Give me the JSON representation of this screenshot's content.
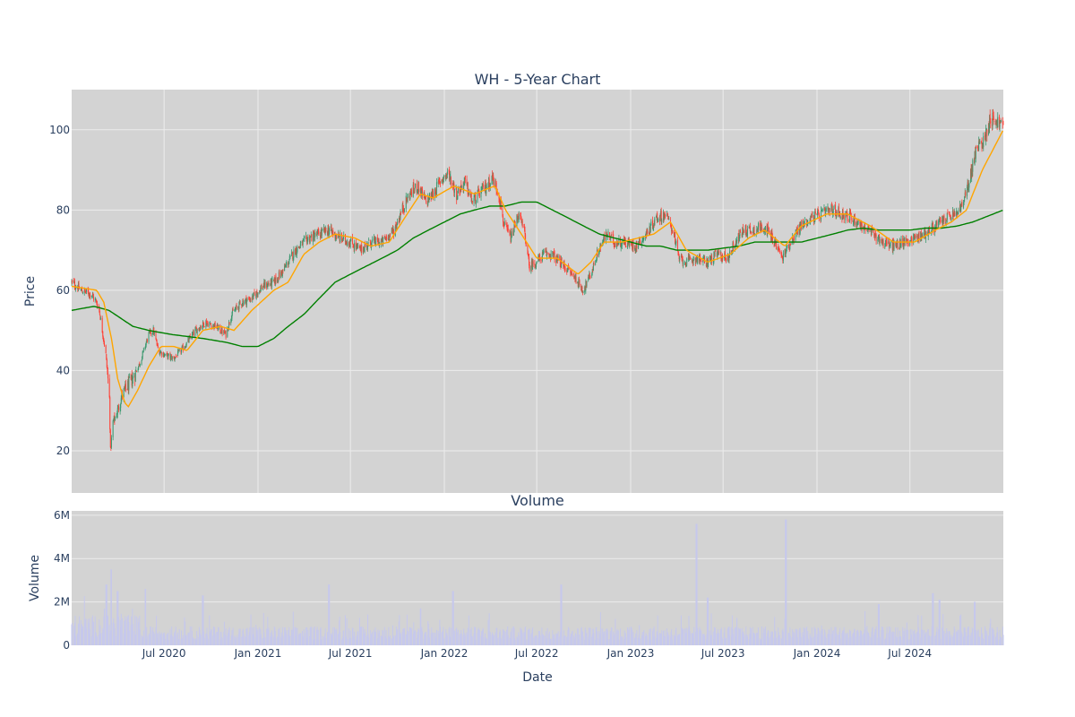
{
  "chart_data": {
    "type": "candlestick",
    "colors": {
      "plot_bg": "#d3d3d3",
      "grid": "#ececec",
      "up": "#3d9970",
      "down": "#ff4136",
      "ma_short": "#ffa500",
      "ma_long": "#008000",
      "volume": "#c6c8ec",
      "text": "#2a3f5f"
    },
    "price": {
      "title": "WH - 5-Year Chart",
      "ylabel": "Price",
      "ylim": [
        9.5,
        110
      ],
      "yticks": [
        20,
        40,
        60,
        80,
        100
      ],
      "x_range": [
        "2020-01-02",
        "2024-12-31"
      ],
      "close_keypoints": [
        [
          "2020-01-02",
          62
        ],
        [
          "2020-01-20",
          60
        ],
        [
          "2020-02-10",
          59
        ],
        [
          "2020-02-24",
          56
        ],
        [
          "2020-03-02",
          50
        ],
        [
          "2020-03-09",
          44
        ],
        [
          "2020-03-16",
          33
        ],
        [
          "2020-03-18",
          20
        ],
        [
          "2020-03-23",
          27
        ],
        [
          "2020-04-01",
          30
        ],
        [
          "2020-04-10",
          34
        ],
        [
          "2020-04-20",
          36
        ],
        [
          "2020-05-01",
          38
        ],
        [
          "2020-05-15",
          42
        ],
        [
          "2020-06-01",
          49
        ],
        [
          "2020-06-10",
          50
        ],
        [
          "2020-06-20",
          45
        ],
        [
          "2020-07-01",
          44
        ],
        [
          "2020-07-20",
          43
        ],
        [
          "2020-08-10",
          46
        ],
        [
          "2020-09-01",
          50
        ],
        [
          "2020-09-20",
          52
        ],
        [
          "2020-10-10",
          51
        ],
        [
          "2020-10-30",
          49
        ],
        [
          "2020-11-10",
          54
        ],
        [
          "2020-11-30",
          57
        ],
        [
          "2020-12-20",
          58
        ],
        [
          "2021-01-10",
          61
        ],
        [
          "2021-02-01",
          62
        ],
        [
          "2021-02-20",
          65
        ],
        [
          "2021-03-15",
          70
        ],
        [
          "2021-04-10",
          73
        ],
        [
          "2021-05-01",
          74
        ],
        [
          "2021-05-20",
          75
        ],
        [
          "2021-06-10",
          73
        ],
        [
          "2021-07-01",
          72
        ],
        [
          "2021-07-20",
          70
        ],
        [
          "2021-08-10",
          72
        ],
        [
          "2021-09-01",
          72
        ],
        [
          "2021-09-25",
          75
        ],
        [
          "2021-10-10",
          80
        ],
        [
          "2021-10-25",
          84
        ],
        [
          "2021-11-10",
          86
        ],
        [
          "2021-11-26",
          82
        ],
        [
          "2021-12-10",
          84
        ],
        [
          "2021-12-28",
          88
        ],
        [
          "2022-01-10",
          89
        ],
        [
          "2022-01-25",
          84
        ],
        [
          "2022-02-10",
          87
        ],
        [
          "2022-02-25",
          82
        ],
        [
          "2022-03-10",
          84
        ],
        [
          "2022-03-25",
          86
        ],
        [
          "2022-04-05",
          88
        ],
        [
          "2022-04-18",
          84
        ],
        [
          "2022-04-28",
          76
        ],
        [
          "2022-05-12",
          73
        ],
        [
          "2022-05-26",
          79
        ],
        [
          "2022-06-08",
          74
        ],
        [
          "2022-06-16",
          66
        ],
        [
          "2022-06-30",
          67
        ],
        [
          "2022-07-15",
          69
        ],
        [
          "2022-07-30",
          69
        ],
        [
          "2022-08-15",
          67
        ],
        [
          "2022-09-01",
          65
        ],
        [
          "2022-09-15",
          63
        ],
        [
          "2022-09-30",
          60
        ],
        [
          "2022-10-15",
          64
        ],
        [
          "2022-10-30",
          70
        ],
        [
          "2022-11-15",
          74
        ],
        [
          "2022-11-30",
          72
        ],
        [
          "2022-12-20",
          72
        ],
        [
          "2023-01-10",
          71
        ],
        [
          "2023-02-01",
          74
        ],
        [
          "2023-02-20",
          78
        ],
        [
          "2023-03-10",
          79
        ],
        [
          "2023-03-25",
          75
        ],
        [
          "2023-04-05",
          68
        ],
        [
          "2023-04-20",
          67
        ],
        [
          "2023-05-10",
          68
        ],
        [
          "2023-05-30",
          67
        ],
        [
          "2023-06-20",
          69
        ],
        [
          "2023-07-10",
          68
        ],
        [
          "2023-07-25",
          72
        ],
        [
          "2023-08-10",
          75
        ],
        [
          "2023-08-30",
          75
        ],
        [
          "2023-09-20",
          76
        ],
        [
          "2023-10-10",
          72
        ],
        [
          "2023-10-25",
          68
        ],
        [
          "2023-11-10",
          72
        ],
        [
          "2023-11-30",
          76
        ],
        [
          "2023-12-20",
          78
        ],
        [
          "2024-01-10",
          79
        ],
        [
          "2024-01-30",
          80
        ],
        [
          "2024-02-20",
          79
        ],
        [
          "2024-03-10",
          78
        ],
        [
          "2024-03-30",
          76
        ],
        [
          "2024-04-20",
          74
        ],
        [
          "2024-05-10",
          72
        ],
        [
          "2024-05-30",
          71
        ],
        [
          "2024-06-20",
          72
        ],
        [
          "2024-07-10",
          73
        ],
        [
          "2024-07-30",
          74
        ],
        [
          "2024-08-20",
          76
        ],
        [
          "2024-09-10",
          78
        ],
        [
          "2024-09-30",
          79
        ],
        [
          "2024-10-15",
          82
        ],
        [
          "2024-10-28",
          89
        ],
        [
          "2024-11-08",
          95
        ],
        [
          "2024-11-25",
          98
        ],
        [
          "2024-12-05",
          103
        ],
        [
          "2024-12-20",
          102
        ],
        [
          "2024-12-31",
          101
        ]
      ],
      "ma_short_keypoints": [
        [
          "2020-01-02",
          61
        ],
        [
          "2020-02-20",
          60
        ],
        [
          "2020-03-05",
          57
        ],
        [
          "2020-03-20",
          48
        ],
        [
          "2020-04-01",
          38
        ],
        [
          "2020-04-15",
          32
        ],
        [
          "2020-04-22",
          31
        ],
        [
          "2020-05-10",
          35
        ],
        [
          "2020-06-01",
          41
        ],
        [
          "2020-06-25",
          46
        ],
        [
          "2020-07-20",
          46
        ],
        [
          "2020-08-15",
          45
        ],
        [
          "2020-09-15",
          50
        ],
        [
          "2020-10-20",
          51
        ],
        [
          "2020-11-15",
          50
        ],
        [
          "2020-12-20",
          55
        ],
        [
          "2021-02-01",
          60
        ],
        [
          "2021-03-01",
          62
        ],
        [
          "2021-04-01",
          69
        ],
        [
          "2021-05-01",
          72
        ],
        [
          "2021-06-01",
          74
        ],
        [
          "2021-07-10",
          73
        ],
        [
          "2021-08-10",
          71
        ],
        [
          "2021-09-15",
          72
        ],
        [
          "2021-10-15",
          78
        ],
        [
          "2021-11-15",
          84
        ],
        [
          "2021-12-10",
          83
        ],
        [
          "2022-01-20",
          86
        ],
        [
          "2022-03-01",
          84
        ],
        [
          "2022-04-10",
          86
        ],
        [
          "2022-05-01",
          80
        ],
        [
          "2022-06-01",
          74
        ],
        [
          "2022-07-01",
          68
        ],
        [
          "2022-08-10",
          68
        ],
        [
          "2022-09-20",
          64
        ],
        [
          "2022-10-15",
          67
        ],
        [
          "2022-11-10",
          72
        ],
        [
          "2022-12-15",
          72
        ],
        [
          "2023-02-15",
          74
        ],
        [
          "2023-03-20",
          77
        ],
        [
          "2023-04-20",
          70
        ],
        [
          "2023-06-01",
          67
        ],
        [
          "2023-07-15",
          69
        ],
        [
          "2023-08-20",
          73
        ],
        [
          "2023-09-20",
          75
        ],
        [
          "2023-10-30",
          71
        ],
        [
          "2023-12-01",
          76
        ],
        [
          "2024-01-20",
          79
        ],
        [
          "2024-03-01",
          79
        ],
        [
          "2024-04-15",
          76
        ],
        [
          "2024-05-30",
          72
        ],
        [
          "2024-07-10",
          72
        ],
        [
          "2024-08-20",
          75
        ],
        [
          "2024-09-20",
          77
        ],
        [
          "2024-10-20",
          80
        ],
        [
          "2024-11-20",
          90
        ],
        [
          "2024-12-31",
          100
        ]
      ],
      "ma_long_keypoints": [
        [
          "2020-01-02",
          55
        ],
        [
          "2020-02-15",
          56
        ],
        [
          "2020-03-15",
          55
        ],
        [
          "2020-05-01",
          51
        ],
        [
          "2020-06-01",
          50
        ],
        [
          "2020-07-15",
          49
        ],
        [
          "2020-09-15",
          48
        ],
        [
          "2020-11-01",
          47
        ],
        [
          "2020-12-01",
          46
        ],
        [
          "2021-01-01",
          46
        ],
        [
          "2021-02-01",
          48
        ],
        [
          "2021-03-01",
          51
        ],
        [
          "2021-04-01",
          54
        ],
        [
          "2021-05-01",
          58
        ],
        [
          "2021-06-01",
          62
        ],
        [
          "2021-07-01",
          64
        ],
        [
          "2021-08-01",
          66
        ],
        [
          "2021-09-01",
          68
        ],
        [
          "2021-10-01",
          70
        ],
        [
          "2021-11-01",
          73
        ],
        [
          "2021-12-01",
          75
        ],
        [
          "2022-01-01",
          77
        ],
        [
          "2022-02-01",
          79
        ],
        [
          "2022-03-01",
          80
        ],
        [
          "2022-04-01",
          81
        ],
        [
          "2022-05-01",
          81
        ],
        [
          "2022-06-01",
          82
        ],
        [
          "2022-07-01",
          82
        ],
        [
          "2022-08-01",
          80
        ],
        [
          "2022-09-01",
          78
        ],
        [
          "2022-10-01",
          76
        ],
        [
          "2022-11-01",
          74
        ],
        [
          "2022-12-01",
          73
        ],
        [
          "2023-01-01",
          72
        ],
        [
          "2023-02-01",
          71
        ],
        [
          "2023-03-01",
          71
        ],
        [
          "2023-04-01",
          70
        ],
        [
          "2023-05-01",
          70
        ],
        [
          "2023-06-01",
          70
        ],
        [
          "2023-07-01",
          70.5
        ],
        [
          "2023-08-01",
          71
        ],
        [
          "2023-09-01",
          72
        ],
        [
          "2023-10-01",
          72
        ],
        [
          "2023-11-01",
          72
        ],
        [
          "2023-12-01",
          72
        ],
        [
          "2024-01-01",
          73
        ],
        [
          "2024-02-01",
          74
        ],
        [
          "2024-03-01",
          75
        ],
        [
          "2024-04-01",
          75.5
        ],
        [
          "2024-05-01",
          75
        ],
        [
          "2024-06-01",
          75
        ],
        [
          "2024-07-01",
          75
        ],
        [
          "2024-08-01",
          75.5
        ],
        [
          "2024-09-01",
          75.5
        ],
        [
          "2024-10-01",
          76
        ],
        [
          "2024-11-01",
          77
        ],
        [
          "2024-12-01",
          78.5
        ],
        [
          "2024-12-31",
          80
        ]
      ]
    },
    "volume": {
      "title": "Volume",
      "ylabel": "Volume",
      "ylim": [
        0,
        6200000
      ],
      "yticks": [
        0,
        2000000,
        4000000,
        6000000
      ],
      "ytick_labels": [
        "0",
        "2M",
        "4M",
        "6M"
      ],
      "base_level": 700000,
      "spikes": [
        [
          "2020-03-10",
          2800000
        ],
        [
          "2020-03-20",
          3500000
        ],
        [
          "2020-04-01",
          2500000
        ],
        [
          "2020-05-25",
          2600000
        ],
        [
          "2020-09-15",
          2300000
        ],
        [
          "2021-05-20",
          2800000
        ],
        [
          "2021-11-15",
          1700000
        ],
        [
          "2022-01-18",
          2500000
        ],
        [
          "2022-08-18",
          2800000
        ],
        [
          "2023-05-10",
          5600000
        ],
        [
          "2023-06-01",
          2200000
        ],
        [
          "2023-11-01",
          5800000
        ],
        [
          "2024-05-01",
          1900000
        ],
        [
          "2024-08-15",
          2400000
        ],
        [
          "2024-08-28",
          2100000
        ],
        [
          "2024-11-05",
          2000000
        ]
      ]
    },
    "xlabel": "Date",
    "xticks": [
      "2020-07-01",
      "2021-01-01",
      "2021-07-01",
      "2022-01-01",
      "2022-07-01",
      "2023-01-01",
      "2023-07-01",
      "2024-01-01",
      "2024-07-01"
    ],
    "xtick_labels": [
      "Jul 2020",
      "Jan 2021",
      "Jul 2021",
      "Jan 2022",
      "Jul 2022",
      "Jan 2023",
      "Jul 2023",
      "Jan 2024",
      "Jul 2024"
    ]
  }
}
